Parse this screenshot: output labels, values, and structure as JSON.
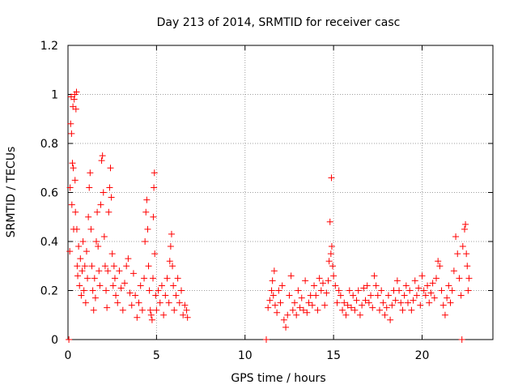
{
  "chart_data": {
    "type": "scatter",
    "title": "Day 213 of 2014, SRMTID for receiver casc",
    "xlabel": "GPS time / hours",
    "ylabel": "SRMTID / TECUs",
    "xlim": [
      0,
      24
    ],
    "ylim": [
      0,
      1.2
    ],
    "xticks": [
      0,
      5,
      10,
      15,
      20
    ],
    "xtick_labels": [
      "0",
      "5",
      "10",
      "15",
      "20"
    ],
    "yticks": [
      0,
      0.2,
      0.4,
      0.6,
      0.8,
      1.0,
      1.2
    ],
    "ytick_labels": [
      "0",
      "0.2",
      "0.4",
      "0.6",
      "0.8",
      "1",
      "1.2"
    ],
    "grid": true,
    "marker": "plus",
    "color": "#ff0000",
    "series": [
      {
        "name": "SRMTID",
        "points": [
          [
            0.05,
            0.0
          ],
          [
            0.1,
            0.36
          ],
          [
            0.12,
            0.62
          ],
          [
            0.15,
            0.88
          ],
          [
            0.18,
            0.99
          ],
          [
            0.2,
            0.84
          ],
          [
            0.22,
            0.55
          ],
          [
            0.25,
            0.72
          ],
          [
            0.28,
            0.95
          ],
          [
            0.3,
            0.7
          ],
          [
            0.32,
            0.45
          ],
          [
            0.35,
            0.98
          ],
          [
            0.38,
            1.0
          ],
          [
            0.4,
            0.65
          ],
          [
            0.42,
            0.52
          ],
          [
            0.45,
            0.94
          ],
          [
            0.48,
            1.01
          ],
          [
            0.5,
            0.45
          ],
          [
            0.52,
            0.3
          ],
          [
            0.55,
            0.26
          ],
          [
            0.6,
            0.38
          ],
          [
            0.65,
            0.22
          ],
          [
            0.7,
            0.33
          ],
          [
            0.75,
            0.18
          ],
          [
            0.8,
            0.28
          ],
          [
            0.85,
            0.4
          ],
          [
            0.9,
            0.2
          ],
          [
            0.95,
            0.3
          ],
          [
            1.0,
            0.15
          ],
          [
            1.05,
            0.36
          ],
          [
            1.1,
            0.25
          ],
          [
            1.15,
            0.5
          ],
          [
            1.2,
            0.62
          ],
          [
            1.25,
            0.68
          ],
          [
            1.3,
            0.45
          ],
          [
            1.35,
            0.3
          ],
          [
            1.4,
            0.2
          ],
          [
            1.45,
            0.12
          ],
          [
            1.5,
            0.25
          ],
          [
            1.55,
            0.17
          ],
          [
            1.6,
            0.4
          ],
          [
            1.65,
            0.52
          ],
          [
            1.7,
            0.38
          ],
          [
            1.75,
            0.28
          ],
          [
            1.8,
            0.22
          ],
          [
            1.85,
            0.55
          ],
          [
            1.9,
            0.73
          ],
          [
            1.95,
            0.75
          ],
          [
            2.0,
            0.6
          ],
          [
            2.05,
            0.42
          ],
          [
            2.1,
            0.3
          ],
          [
            2.15,
            0.2
          ],
          [
            2.2,
            0.13
          ],
          [
            2.25,
            0.28
          ],
          [
            2.3,
            0.52
          ],
          [
            2.35,
            0.62
          ],
          [
            2.4,
            0.7
          ],
          [
            2.45,
            0.58
          ],
          [
            2.5,
            0.35
          ],
          [
            2.55,
            0.22
          ],
          [
            2.6,
            0.3
          ],
          [
            2.65,
            0.25
          ],
          [
            2.7,
            0.18
          ],
          [
            2.8,
            0.15
          ],
          [
            2.9,
            0.28
          ],
          [
            3.0,
            0.21
          ],
          [
            3.1,
            0.12
          ],
          [
            3.2,
            0.23
          ],
          [
            3.3,
            0.3
          ],
          [
            3.4,
            0.33
          ],
          [
            3.5,
            0.19
          ],
          [
            3.6,
            0.14
          ],
          [
            3.7,
            0.27
          ],
          [
            3.8,
            0.18
          ],
          [
            3.9,
            0.09
          ],
          [
            4.0,
            0.15
          ],
          [
            4.1,
            0.22
          ],
          [
            4.2,
            0.12
          ],
          [
            4.3,
            0.25
          ],
          [
            4.35,
            0.4
          ],
          [
            4.4,
            0.52
          ],
          [
            4.45,
            0.57
          ],
          [
            4.5,
            0.45
          ],
          [
            4.55,
            0.3
          ],
          [
            4.6,
            0.2
          ],
          [
            4.65,
            0.12
          ],
          [
            4.7,
            0.1
          ],
          [
            4.75,
            0.08
          ],
          [
            4.8,
            0.25
          ],
          [
            4.82,
            0.5
          ],
          [
            4.85,
            0.62
          ],
          [
            4.88,
            0.68
          ],
          [
            4.9,
            0.35
          ],
          [
            4.95,
            0.18
          ],
          [
            5.0,
            0.12
          ],
          [
            5.1,
            0.2
          ],
          [
            5.2,
            0.15
          ],
          [
            5.3,
            0.22
          ],
          [
            5.4,
            0.1
          ],
          [
            5.5,
            0.18
          ],
          [
            5.6,
            0.25
          ],
          [
            5.7,
            0.15
          ],
          [
            5.75,
            0.32
          ],
          [
            5.8,
            0.38
          ],
          [
            5.85,
            0.43
          ],
          [
            5.9,
            0.3
          ],
          [
            5.95,
            0.22
          ],
          [
            6.0,
            0.12
          ],
          [
            6.1,
            0.18
          ],
          [
            6.2,
            0.25
          ],
          [
            6.3,
            0.15
          ],
          [
            6.4,
            0.2
          ],
          [
            6.5,
            0.1
          ],
          [
            6.6,
            0.14
          ],
          [
            6.7,
            0.12
          ],
          [
            6.75,
            0.09
          ],
          [
            11.2,
            0.0
          ],
          [
            11.3,
            0.13
          ],
          [
            11.4,
            0.16
          ],
          [
            11.5,
            0.2
          ],
          [
            11.55,
            0.24
          ],
          [
            11.6,
            0.18
          ],
          [
            11.65,
            0.28
          ],
          [
            11.7,
            0.14
          ],
          [
            11.8,
            0.11
          ],
          [
            11.9,
            0.2
          ],
          [
            12.0,
            0.15
          ],
          [
            12.1,
            0.22
          ],
          [
            12.2,
            0.08
          ],
          [
            12.3,
            0.05
          ],
          [
            12.4,
            0.1
          ],
          [
            12.5,
            0.18
          ],
          [
            12.6,
            0.26
          ],
          [
            12.7,
            0.12
          ],
          [
            12.8,
            0.15
          ],
          [
            12.9,
            0.1
          ],
          [
            13.0,
            0.2
          ],
          [
            13.1,
            0.13
          ],
          [
            13.2,
            0.17
          ],
          [
            13.3,
            0.12
          ],
          [
            13.4,
            0.24
          ],
          [
            13.5,
            0.11
          ],
          [
            13.6,
            0.15
          ],
          [
            13.7,
            0.18
          ],
          [
            13.8,
            0.14
          ],
          [
            13.9,
            0.22
          ],
          [
            14.0,
            0.18
          ],
          [
            14.1,
            0.12
          ],
          [
            14.2,
            0.25
          ],
          [
            14.3,
            0.2
          ],
          [
            14.4,
            0.23
          ],
          [
            14.5,
            0.14
          ],
          [
            14.6,
            0.19
          ],
          [
            14.7,
            0.24
          ],
          [
            14.75,
            0.32
          ],
          [
            14.8,
            0.48
          ],
          [
            14.85,
            0.35
          ],
          [
            14.88,
            0.66
          ],
          [
            14.9,
            0.38
          ],
          [
            14.95,
            0.3
          ],
          [
            15.0,
            0.26
          ],
          [
            15.1,
            0.22
          ],
          [
            15.2,
            0.15
          ],
          [
            15.3,
            0.2
          ],
          [
            15.4,
            0.18
          ],
          [
            15.5,
            0.12
          ],
          [
            15.6,
            0.15
          ],
          [
            15.7,
            0.1
          ],
          [
            15.8,
            0.14
          ],
          [
            15.9,
            0.2
          ],
          [
            16.0,
            0.13
          ],
          [
            16.1,
            0.18
          ],
          [
            16.2,
            0.12
          ],
          [
            16.3,
            0.16
          ],
          [
            16.4,
            0.2
          ],
          [
            16.5,
            0.1
          ],
          [
            16.6,
            0.14
          ],
          [
            16.7,
            0.21
          ],
          [
            16.8,
            0.16
          ],
          [
            16.9,
            0.22
          ],
          [
            17.0,
            0.15
          ],
          [
            17.1,
            0.18
          ],
          [
            17.2,
            0.13
          ],
          [
            17.3,
            0.26
          ],
          [
            17.4,
            0.22
          ],
          [
            17.5,
            0.18
          ],
          [
            17.6,
            0.12
          ],
          [
            17.7,
            0.2
          ],
          [
            17.8,
            0.15
          ],
          [
            17.9,
            0.1
          ],
          [
            18.0,
            0.13
          ],
          [
            18.1,
            0.18
          ],
          [
            18.2,
            0.08
          ],
          [
            18.3,
            0.14
          ],
          [
            18.4,
            0.2
          ],
          [
            18.5,
            0.16
          ],
          [
            18.6,
            0.24
          ],
          [
            18.7,
            0.2
          ],
          [
            18.8,
            0.15
          ],
          [
            18.9,
            0.12
          ],
          [
            19.0,
            0.18
          ],
          [
            19.1,
            0.22
          ],
          [
            19.2,
            0.15
          ],
          [
            19.3,
            0.2
          ],
          [
            19.4,
            0.12
          ],
          [
            19.5,
            0.16
          ],
          [
            19.6,
            0.24
          ],
          [
            19.7,
            0.18
          ],
          [
            19.8,
            0.21
          ],
          [
            19.9,
            0.14
          ],
          [
            20.0,
            0.26
          ],
          [
            20.1,
            0.2
          ],
          [
            20.2,
            0.18
          ],
          [
            20.3,
            0.22
          ],
          [
            20.4,
            0.15
          ],
          [
            20.5,
            0.19
          ],
          [
            20.6,
            0.23
          ],
          [
            20.7,
            0.17
          ],
          [
            20.8,
            0.25
          ],
          [
            20.9,
            0.32
          ],
          [
            21.0,
            0.3
          ],
          [
            21.1,
            0.2
          ],
          [
            21.2,
            0.14
          ],
          [
            21.3,
            0.1
          ],
          [
            21.4,
            0.17
          ],
          [
            21.5,
            0.22
          ],
          [
            21.6,
            0.15
          ],
          [
            21.7,
            0.2
          ],
          [
            21.8,
            0.28
          ],
          [
            21.9,
            0.42
          ],
          [
            22.0,
            0.35
          ],
          [
            22.1,
            0.25
          ],
          [
            22.2,
            0.18
          ],
          [
            22.25,
            0.0
          ],
          [
            22.3,
            0.38
          ],
          [
            22.4,
            0.45
          ],
          [
            22.45,
            0.47
          ],
          [
            22.5,
            0.35
          ],
          [
            22.55,
            0.3
          ],
          [
            22.6,
            0.2
          ],
          [
            22.65,
            0.25
          ]
        ]
      }
    ]
  }
}
